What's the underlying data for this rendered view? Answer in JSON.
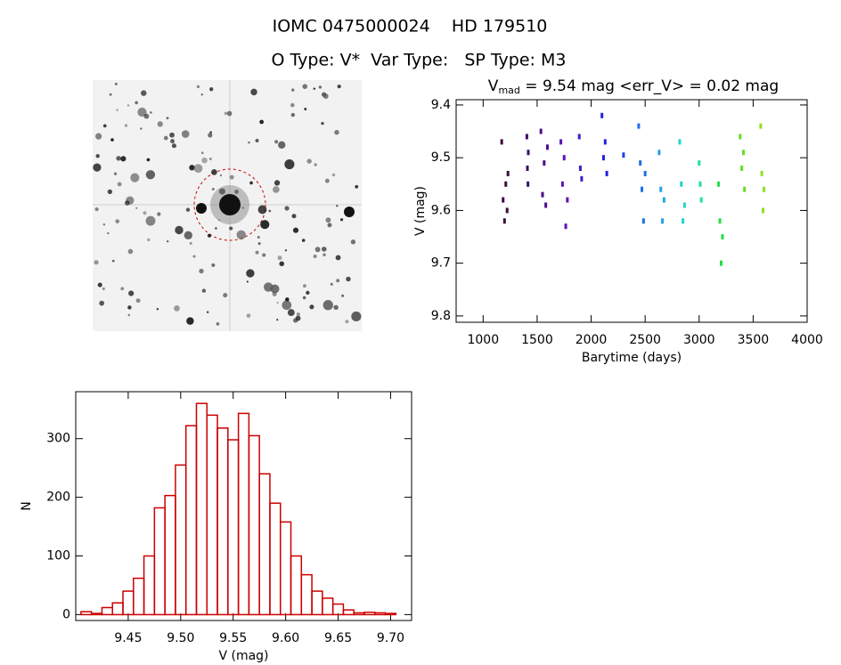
{
  "header": {
    "title": "IOMC 0475000024    HD 179510",
    "subtitle": "O Type: V*  Var Type:   SP Type: M3"
  },
  "chart_data": [
    {
      "type": "scatter",
      "title": {
        "main": "V",
        "sub": "mad",
        "rest": " = 9.54 mag <err_V> = 0.02 mag"
      },
      "x_label": "Barytime (days)",
      "y_label": "V (mag)",
      "xlim": [
        750,
        4000
      ],
      "xticks": [
        1000,
        1500,
        2000,
        2500,
        3000,
        3500,
        4000
      ],
      "ylim": [
        9.812,
        9.39
      ],
      "yticks": [
        9.4,
        9.5,
        9.6,
        9.7,
        9.8
      ],
      "series": [
        {
          "color": "#3b0b3b",
          "x": [
            1172,
            1185,
            1198,
            1210,
            1222,
            1230
          ],
          "values": [
            9.47,
            9.58,
            9.62,
            9.55,
            9.6,
            9.53
          ]
        },
        {
          "color": "#3d0d66",
          "x": [
            1405,
            1410,
            1415,
            1418
          ],
          "values": [
            9.46,
            9.52,
            9.55,
            9.49
          ]
        },
        {
          "color": "#4b0d8a",
          "x": [
            1535,
            1550,
            1565,
            1580,
            1595
          ],
          "values": [
            9.45,
            9.57,
            9.51,
            9.59,
            9.48
          ]
        },
        {
          "color": "#5a14b4",
          "x": [
            1720,
            1735,
            1750,
            1765,
            1780
          ],
          "values": [
            9.47,
            9.55,
            9.5,
            9.63,
            9.58
          ]
        },
        {
          "color": "#3e1ec8",
          "x": [
            1890,
            1900,
            1912
          ],
          "values": [
            9.46,
            9.52,
            9.54
          ]
        },
        {
          "color": "#2222e0",
          "x": [
            2100,
            2115,
            2130,
            2145
          ],
          "values": [
            9.42,
            9.5,
            9.47,
            9.53
          ]
        },
        {
          "color": "#2244e6",
          "x": [
            2300
          ],
          "values": [
            9.495
          ]
        },
        {
          "color": "#1e70e8",
          "x": [
            2440,
            2455,
            2470,
            2485,
            2500
          ],
          "values": [
            9.44,
            9.51,
            9.56,
            9.62,
            9.53
          ]
        },
        {
          "color": "#22a2ea",
          "x": [
            2630,
            2645,
            2660,
            2675
          ],
          "values": [
            9.49,
            9.56,
            9.62,
            9.58
          ]
        },
        {
          "color": "#22d2d2",
          "x": [
            2820,
            2835,
            2850,
            2865
          ],
          "values": [
            9.47,
            9.55,
            9.62,
            9.59
          ]
        },
        {
          "color": "#22e0a2",
          "x": [
            3000,
            3010,
            3020
          ],
          "values": [
            9.51,
            9.55,
            9.58
          ]
        },
        {
          "color": "#22e044",
          "x": [
            3180,
            3192,
            3204,
            3216
          ],
          "values": [
            9.55,
            9.62,
            9.7,
            9.65
          ]
        },
        {
          "color": "#62e022",
          "x": [
            3380,
            3395,
            3410,
            3420
          ],
          "values": [
            9.46,
            9.52,
            9.49,
            9.56
          ]
        },
        {
          "color": "#92e022",
          "x": [
            3570,
            3580,
            3592,
            3600
          ],
          "values": [
            9.44,
            9.53,
            9.6,
            9.56
          ]
        }
      ]
    },
    {
      "type": "histogram",
      "x_label": "V (mag)",
      "y_label": "N",
      "color": "#cc0000",
      "xlim": [
        9.4,
        9.72
      ],
      "xticks": [
        {
          "value": 9.45,
          "label": "9.45"
        },
        {
          "value": 9.5,
          "label": "9.50"
        },
        {
          "value": 9.55,
          "label": "9.55"
        },
        {
          "value": 9.6,
          "label": "9.60"
        },
        {
          "value": 9.65,
          "label": "9.65"
        },
        {
          "value": 9.7,
          "label": "9.70"
        }
      ],
      "ylim": [
        -10,
        380
      ],
      "yticks": [
        0,
        100,
        200,
        300
      ],
      "bins": [
        9.405,
        9.415,
        9.425,
        9.435,
        9.445,
        9.455,
        9.465,
        9.475,
        9.485,
        9.495,
        9.505,
        9.515,
        9.525,
        9.535,
        9.545,
        9.555,
        9.565,
        9.575,
        9.585,
        9.595,
        9.605,
        9.615,
        9.625,
        9.635,
        9.645,
        9.655,
        9.665,
        9.675,
        9.685,
        9.695,
        9.705
      ],
      "values": [
        5,
        2,
        12,
        20,
        40,
        62,
        100,
        182,
        203,
        255,
        322,
        360,
        340,
        318,
        298,
        343,
        305,
        240,
        190,
        158,
        100,
        68,
        40,
        28,
        18,
        8,
        3,
        4,
        3,
        2
      ]
    }
  ]
}
